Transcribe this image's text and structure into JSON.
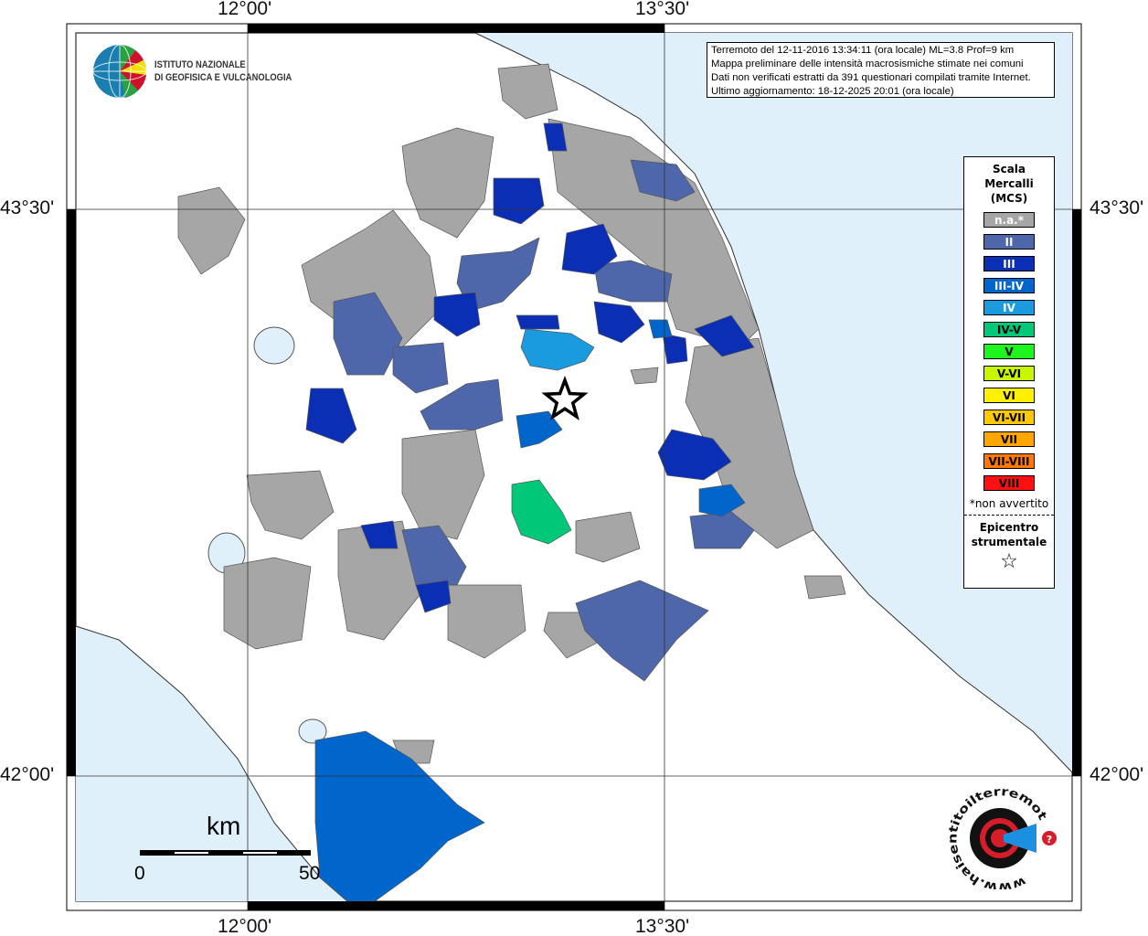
{
  "header": {
    "info_lines": [
      "Terremoto del 12-11-2016 13:34:11 (ora locale) ML=3.8 Prof=9 km",
      "Mappa preliminare delle intensità macrosismiche stimate nei comuni",
      "Dati non verificati estratti da 391 questionari compilati tramite Internet.",
      "Ultimo aggiornamento: 18-12-2025 20:01 (ora locale)"
    ]
  },
  "logo": {
    "line1": "ISTITUTO NAZIONALE",
    "line2": "DI GEOFISICA E VULCANOLOGIA"
  },
  "logo2": {
    "text": "www.haisentitoilterremoto.it"
  },
  "axes": {
    "lon_labels": [
      "12°00'",
      "13°30'"
    ],
    "lat_labels": [
      "43°30'",
      "42°00'"
    ]
  },
  "scale_bar": {
    "unit": "km",
    "min": "0",
    "max": "50"
  },
  "legend": {
    "title": [
      "Scala",
      "Mercalli",
      "(MCS)"
    ],
    "items": [
      {
        "label": "n.a.*",
        "color": "#a6a6a6",
        "text_color": "#ffffff"
      },
      {
        "label": "II",
        "color": "#4e66aa",
        "text_color": "#ffffff"
      },
      {
        "label": "III",
        "color": "#0a2fb4",
        "text_color": "#ffffff"
      },
      {
        "label": "III-IV",
        "color": "#0066cc",
        "text_color": "#ffffff"
      },
      {
        "label": "IV",
        "color": "#1a9be0",
        "text_color": "#ffffff"
      },
      {
        "label": "IV-V",
        "color": "#00c878",
        "text_color": "#000000"
      },
      {
        "label": "V",
        "color": "#1ef51e",
        "text_color": "#000000"
      },
      {
        "label": "V-VI",
        "color": "#c8f500",
        "text_color": "#000000"
      },
      {
        "label": "VI",
        "color": "#fff000",
        "text_color": "#000000"
      },
      {
        "label": "VI-VII",
        "color": "#ffc800",
        "text_color": "#000000"
      },
      {
        "label": "VII",
        "color": "#ffa500",
        "text_color": "#000000"
      },
      {
        "label": "VII-VIII",
        "color": "#ff7800",
        "text_color": "#000000"
      },
      {
        "label": "VIII",
        "color": "#ff1010",
        "text_color": "#000000"
      }
    ],
    "note": "*non avvertito",
    "epicenter_label": [
      "Epicentro",
      "strumentale"
    ],
    "epicenter_symbol": "☆"
  },
  "colors": {
    "sea": "#dff0fb",
    "land": "#ffffff"
  }
}
